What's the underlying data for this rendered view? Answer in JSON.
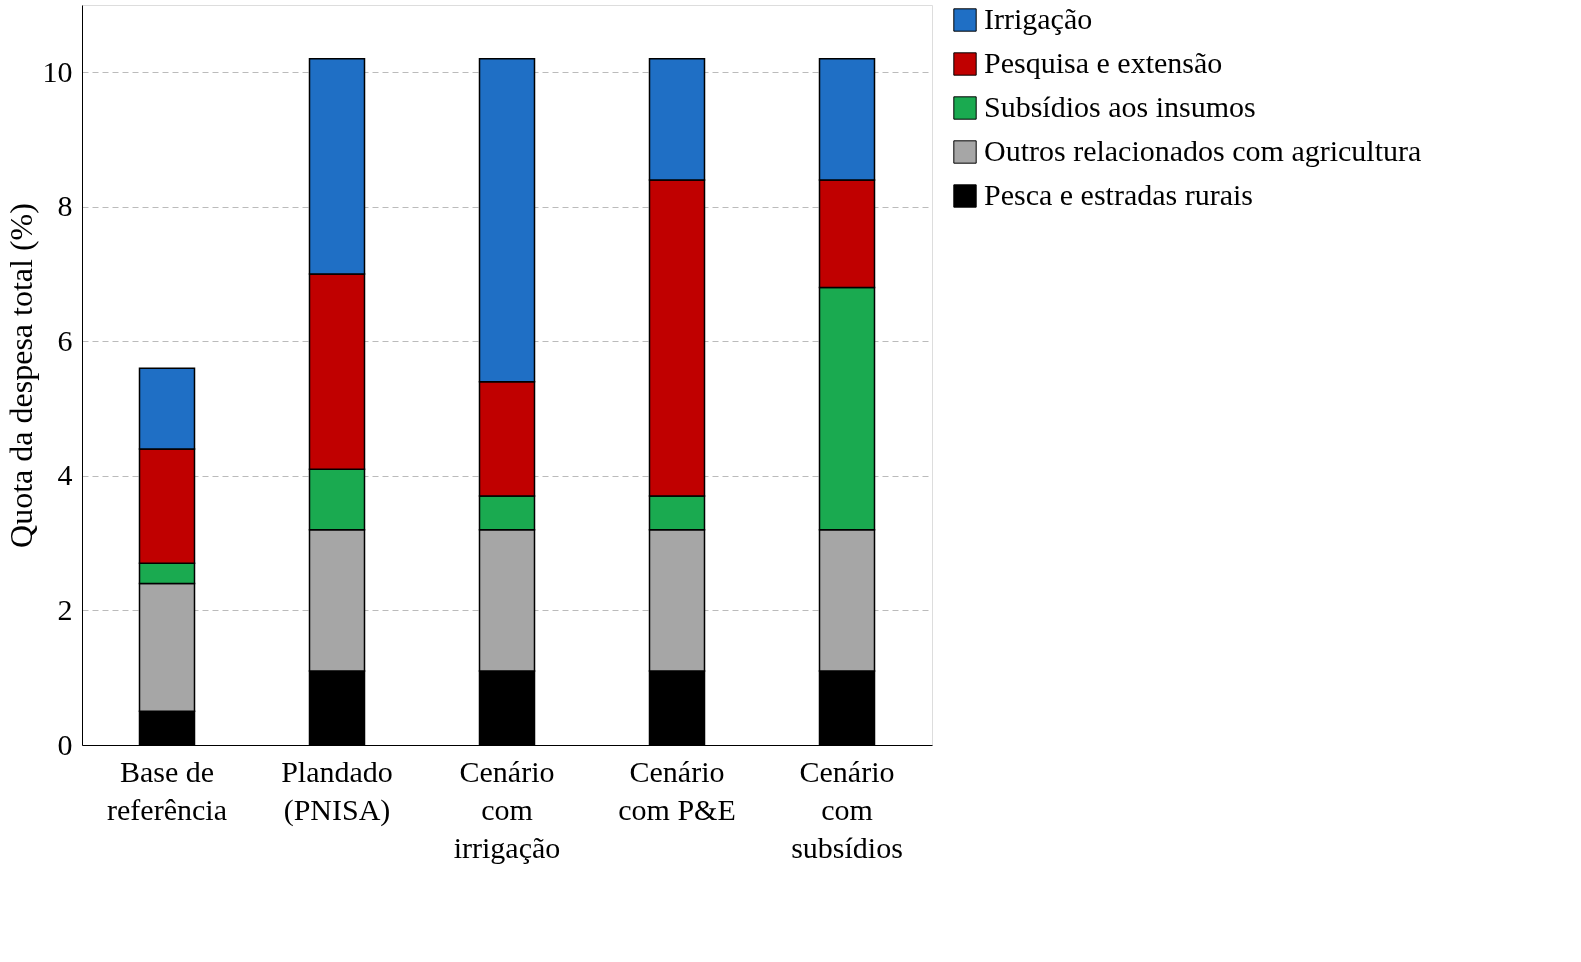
{
  "chart_data": {
    "type": "bar",
    "stacked": true,
    "ylabel": "Quota da despesa total (%)",
    "categories": [
      "Base de referência",
      "Plandado (PNISA)",
      "Cenário com irrigação",
      "Cenário com P&E",
      "Cenário com subsídios"
    ],
    "series": [
      {
        "name": "Pesca e estradas rurais",
        "color": "#000000",
        "values": [
          0.5,
          1.1,
          1.1,
          1.1,
          1.1
        ]
      },
      {
        "name": "Outros relacionados com agricultura",
        "color": "#a6a6a6",
        "values": [
          1.9,
          2.1,
          2.1,
          2.1,
          2.1
        ]
      },
      {
        "name": "Subsídios aos insumos",
        "color": "#1aaa50",
        "values": [
          0.3,
          0.9,
          0.5,
          0.5,
          3.6
        ]
      },
      {
        "name": "Pesquisa e extensão",
        "color": "#c00000",
        "values": [
          1.7,
          2.9,
          1.7,
          4.7,
          1.6
        ]
      },
      {
        "name": "Irrigação",
        "color": "#1f6fc5",
        "values": [
          1.2,
          3.2,
          4.8,
          1.8,
          1.8
        ]
      }
    ],
    "ylim": [
      0,
      11
    ],
    "yticks": [
      0,
      2,
      4,
      6,
      8,
      10
    ],
    "grid": "y",
    "legend": "right"
  }
}
